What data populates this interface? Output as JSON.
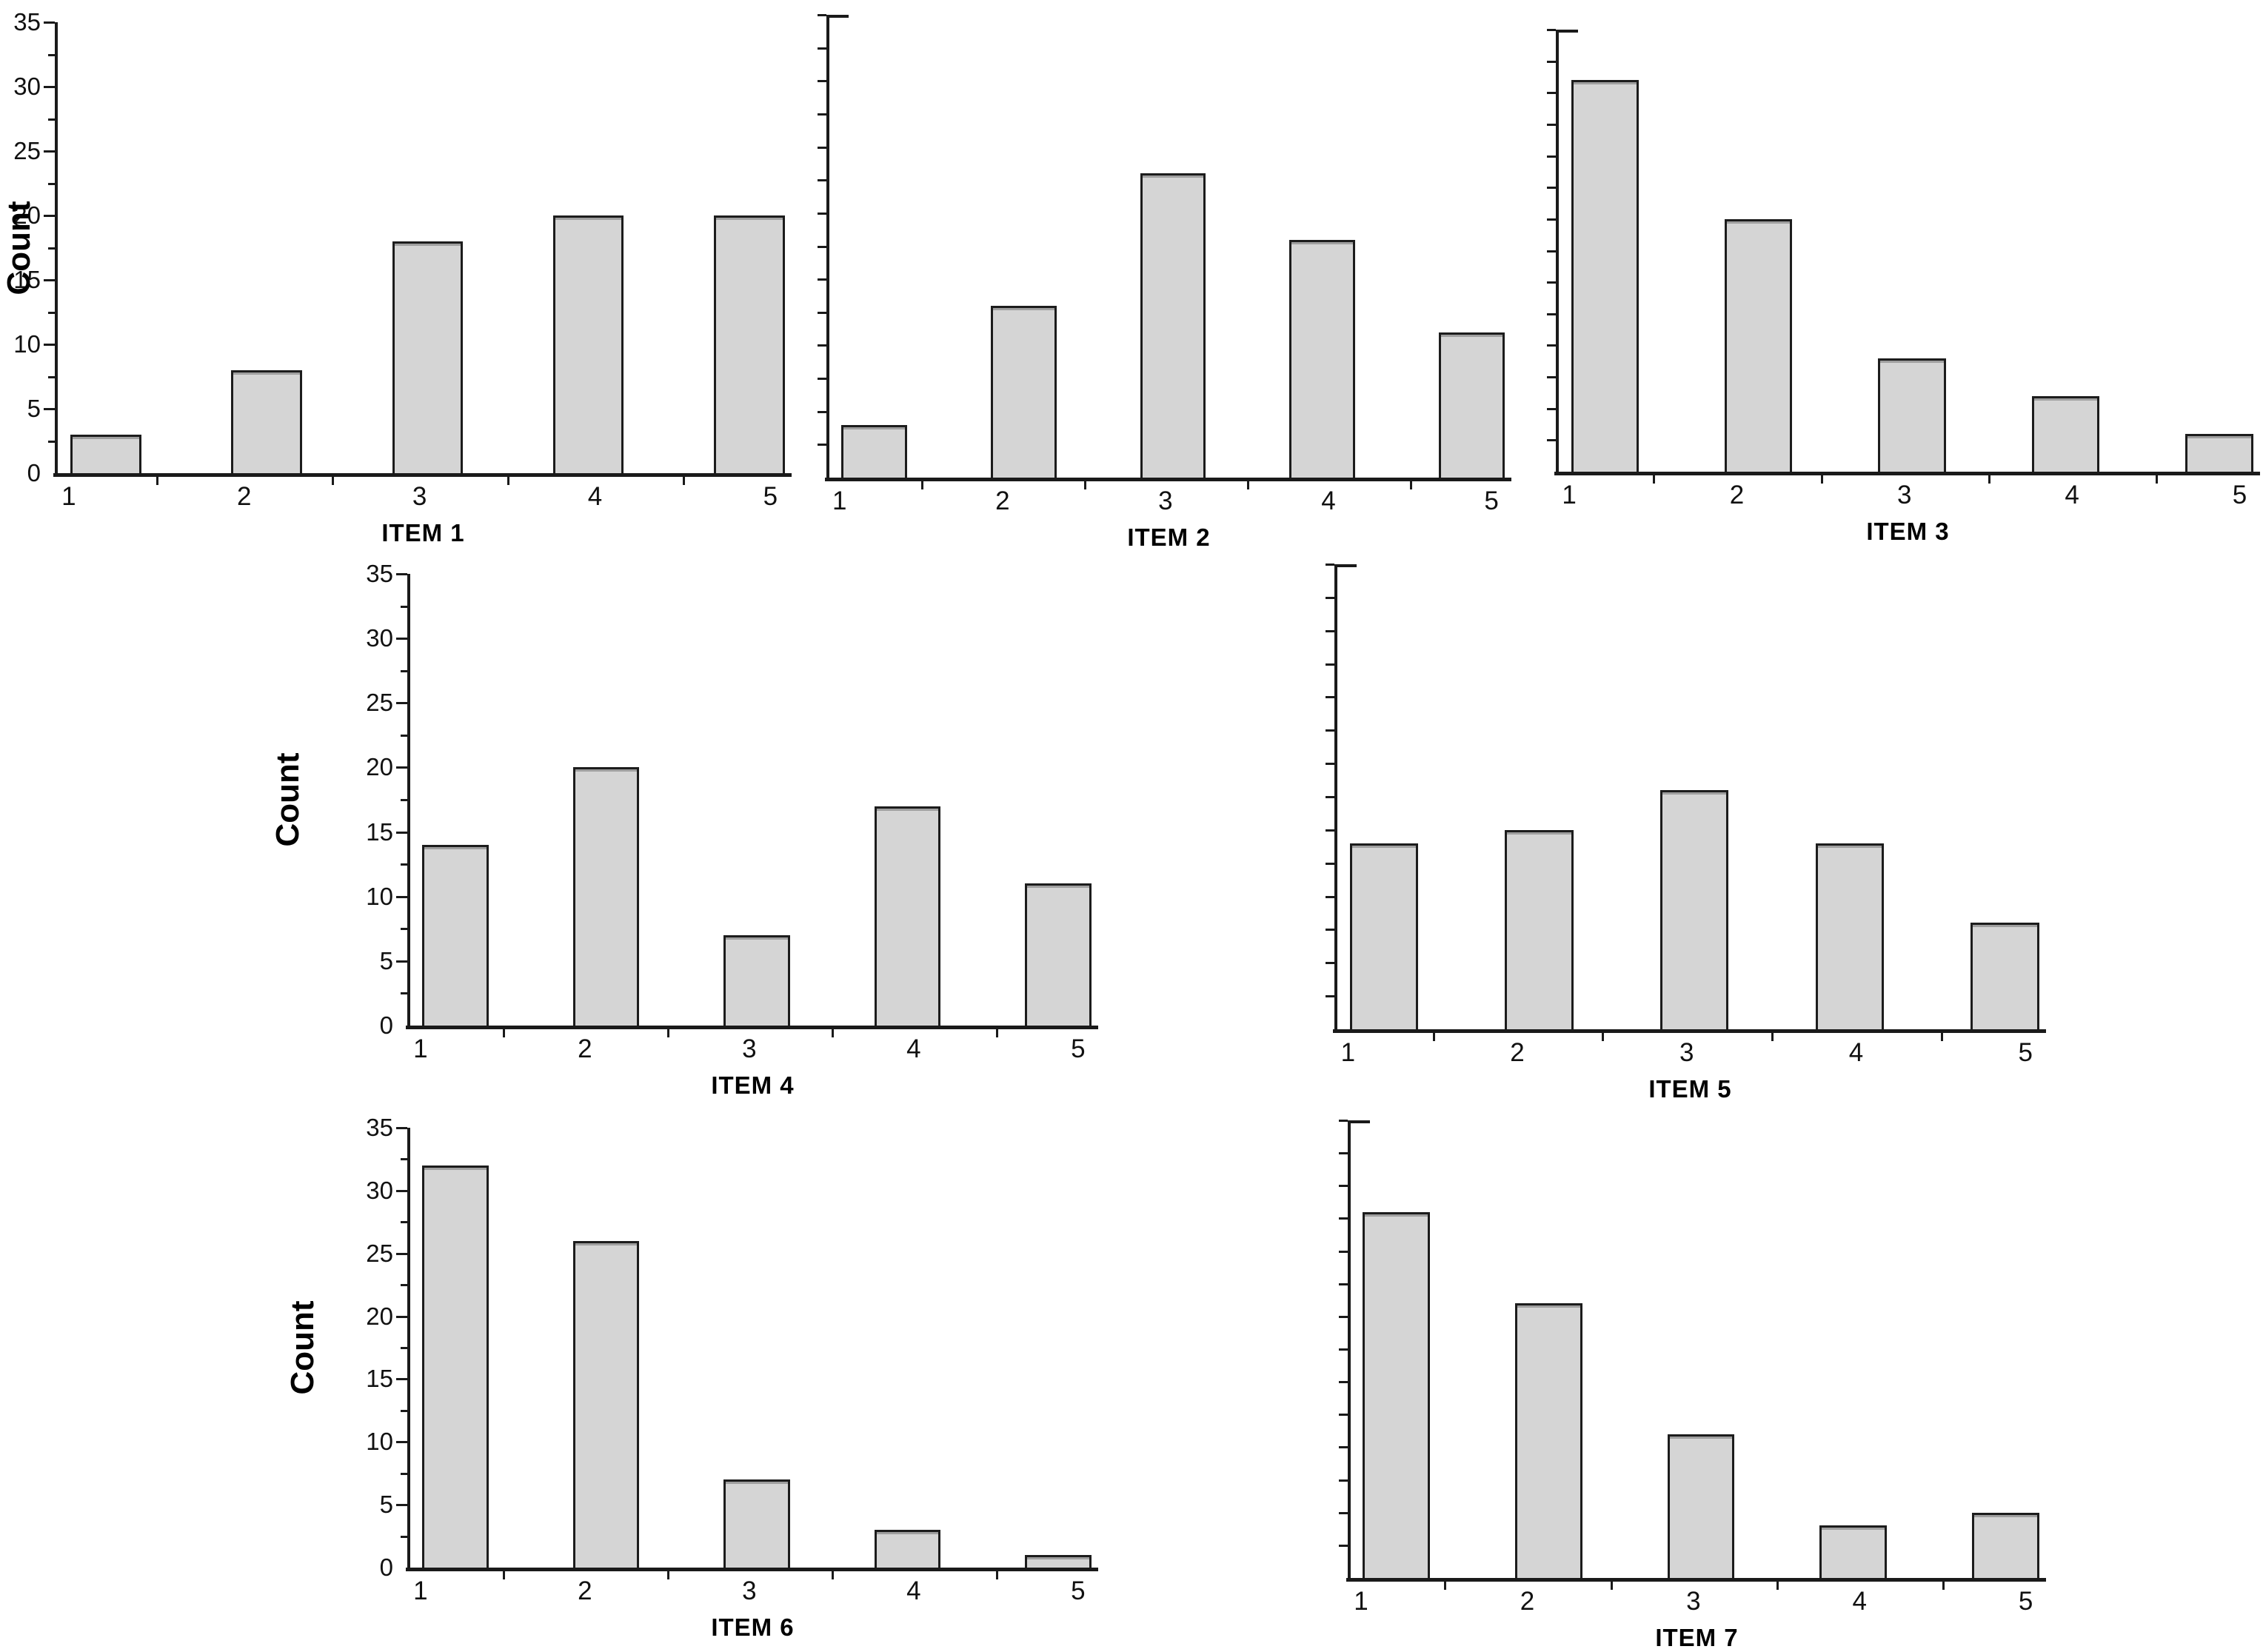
{
  "figure": {
    "background": "#ffffff",
    "bar_fill": "#d5d5d5",
    "bar_border": "#1c1c1c",
    "axis_color": "#1a1a1a",
    "ylabel": "Count",
    "yticks": [
      "0",
      "5",
      "10",
      "15",
      "20",
      "25",
      "30",
      "35"
    ],
    "xticklabels": [
      "1",
      "2",
      "3",
      "4",
      "5"
    ]
  },
  "chart_data": [
    {
      "type": "bar",
      "title": "ITEM 1",
      "categories": [
        1,
        2,
        3,
        4,
        5
      ],
      "values": [
        3,
        8,
        18,
        20,
        20
      ],
      "ylabel": "Count",
      "xlabel": "ITEM 1",
      "ylim": [
        0,
        35
      ],
      "ytick_step": 5,
      "y_axis_labeled": true,
      "legend": "none",
      "grid": false
    },
    {
      "type": "bar",
      "title": "ITEM 2",
      "categories": [
        1,
        2,
        3,
        4,
        5
      ],
      "values": [
        4,
        13,
        23,
        18,
        11
      ],
      "ylabel": "",
      "xlabel": "ITEM 2",
      "ylim": [
        0,
        35
      ],
      "ytick_step": 2.5,
      "y_axis_labeled": false,
      "legend": "none",
      "grid": false
    },
    {
      "type": "bar",
      "title": "ITEM 3",
      "categories": [
        1,
        2,
        3,
        4,
        5
      ],
      "values": [
        31,
        20,
        9,
        6,
        3
      ],
      "ylabel": "",
      "xlabel": "ITEM 3",
      "ylim": [
        0,
        35
      ],
      "ytick_step": 2.5,
      "y_axis_labeled": false,
      "legend": "none",
      "grid": false
    },
    {
      "type": "bar",
      "title": "ITEM 4",
      "categories": [
        1,
        2,
        3,
        4,
        5
      ],
      "values": [
        14,
        20,
        7,
        17,
        11
      ],
      "ylabel": "Count",
      "xlabel": "ITEM 4",
      "ylim": [
        0,
        35
      ],
      "ytick_step": 5,
      "y_axis_labeled": true,
      "legend": "none",
      "grid": false
    },
    {
      "type": "bar",
      "title": "ITEM 5",
      "categories": [
        1,
        2,
        3,
        4,
        5
      ],
      "values": [
        14,
        15,
        18,
        14,
        8
      ],
      "ylabel": "",
      "xlabel": "ITEM 5",
      "ylim": [
        0,
        35
      ],
      "ytick_step": 2.5,
      "y_axis_labeled": false,
      "legend": "none",
      "grid": false
    },
    {
      "type": "bar",
      "title": "ITEM 6",
      "categories": [
        1,
        2,
        3,
        4,
        5
      ],
      "values": [
        32,
        26,
        7,
        3,
        1
      ],
      "ylabel": "Count",
      "xlabel": "ITEM 6",
      "ylim": [
        0,
        35
      ],
      "ytick_step": 5,
      "y_axis_labeled": true,
      "legend": "none",
      "grid": false
    },
    {
      "type": "bar",
      "title": "ITEM 7",
      "categories": [
        1,
        2,
        3,
        4,
        5
      ],
      "values": [
        28,
        21,
        11,
        4,
        5
      ],
      "ylabel": "",
      "xlabel": "ITEM 7",
      "ylim": [
        0,
        35
      ],
      "ytick_step": 2.5,
      "y_axis_labeled": false,
      "legend": "none",
      "grid": false
    }
  ]
}
